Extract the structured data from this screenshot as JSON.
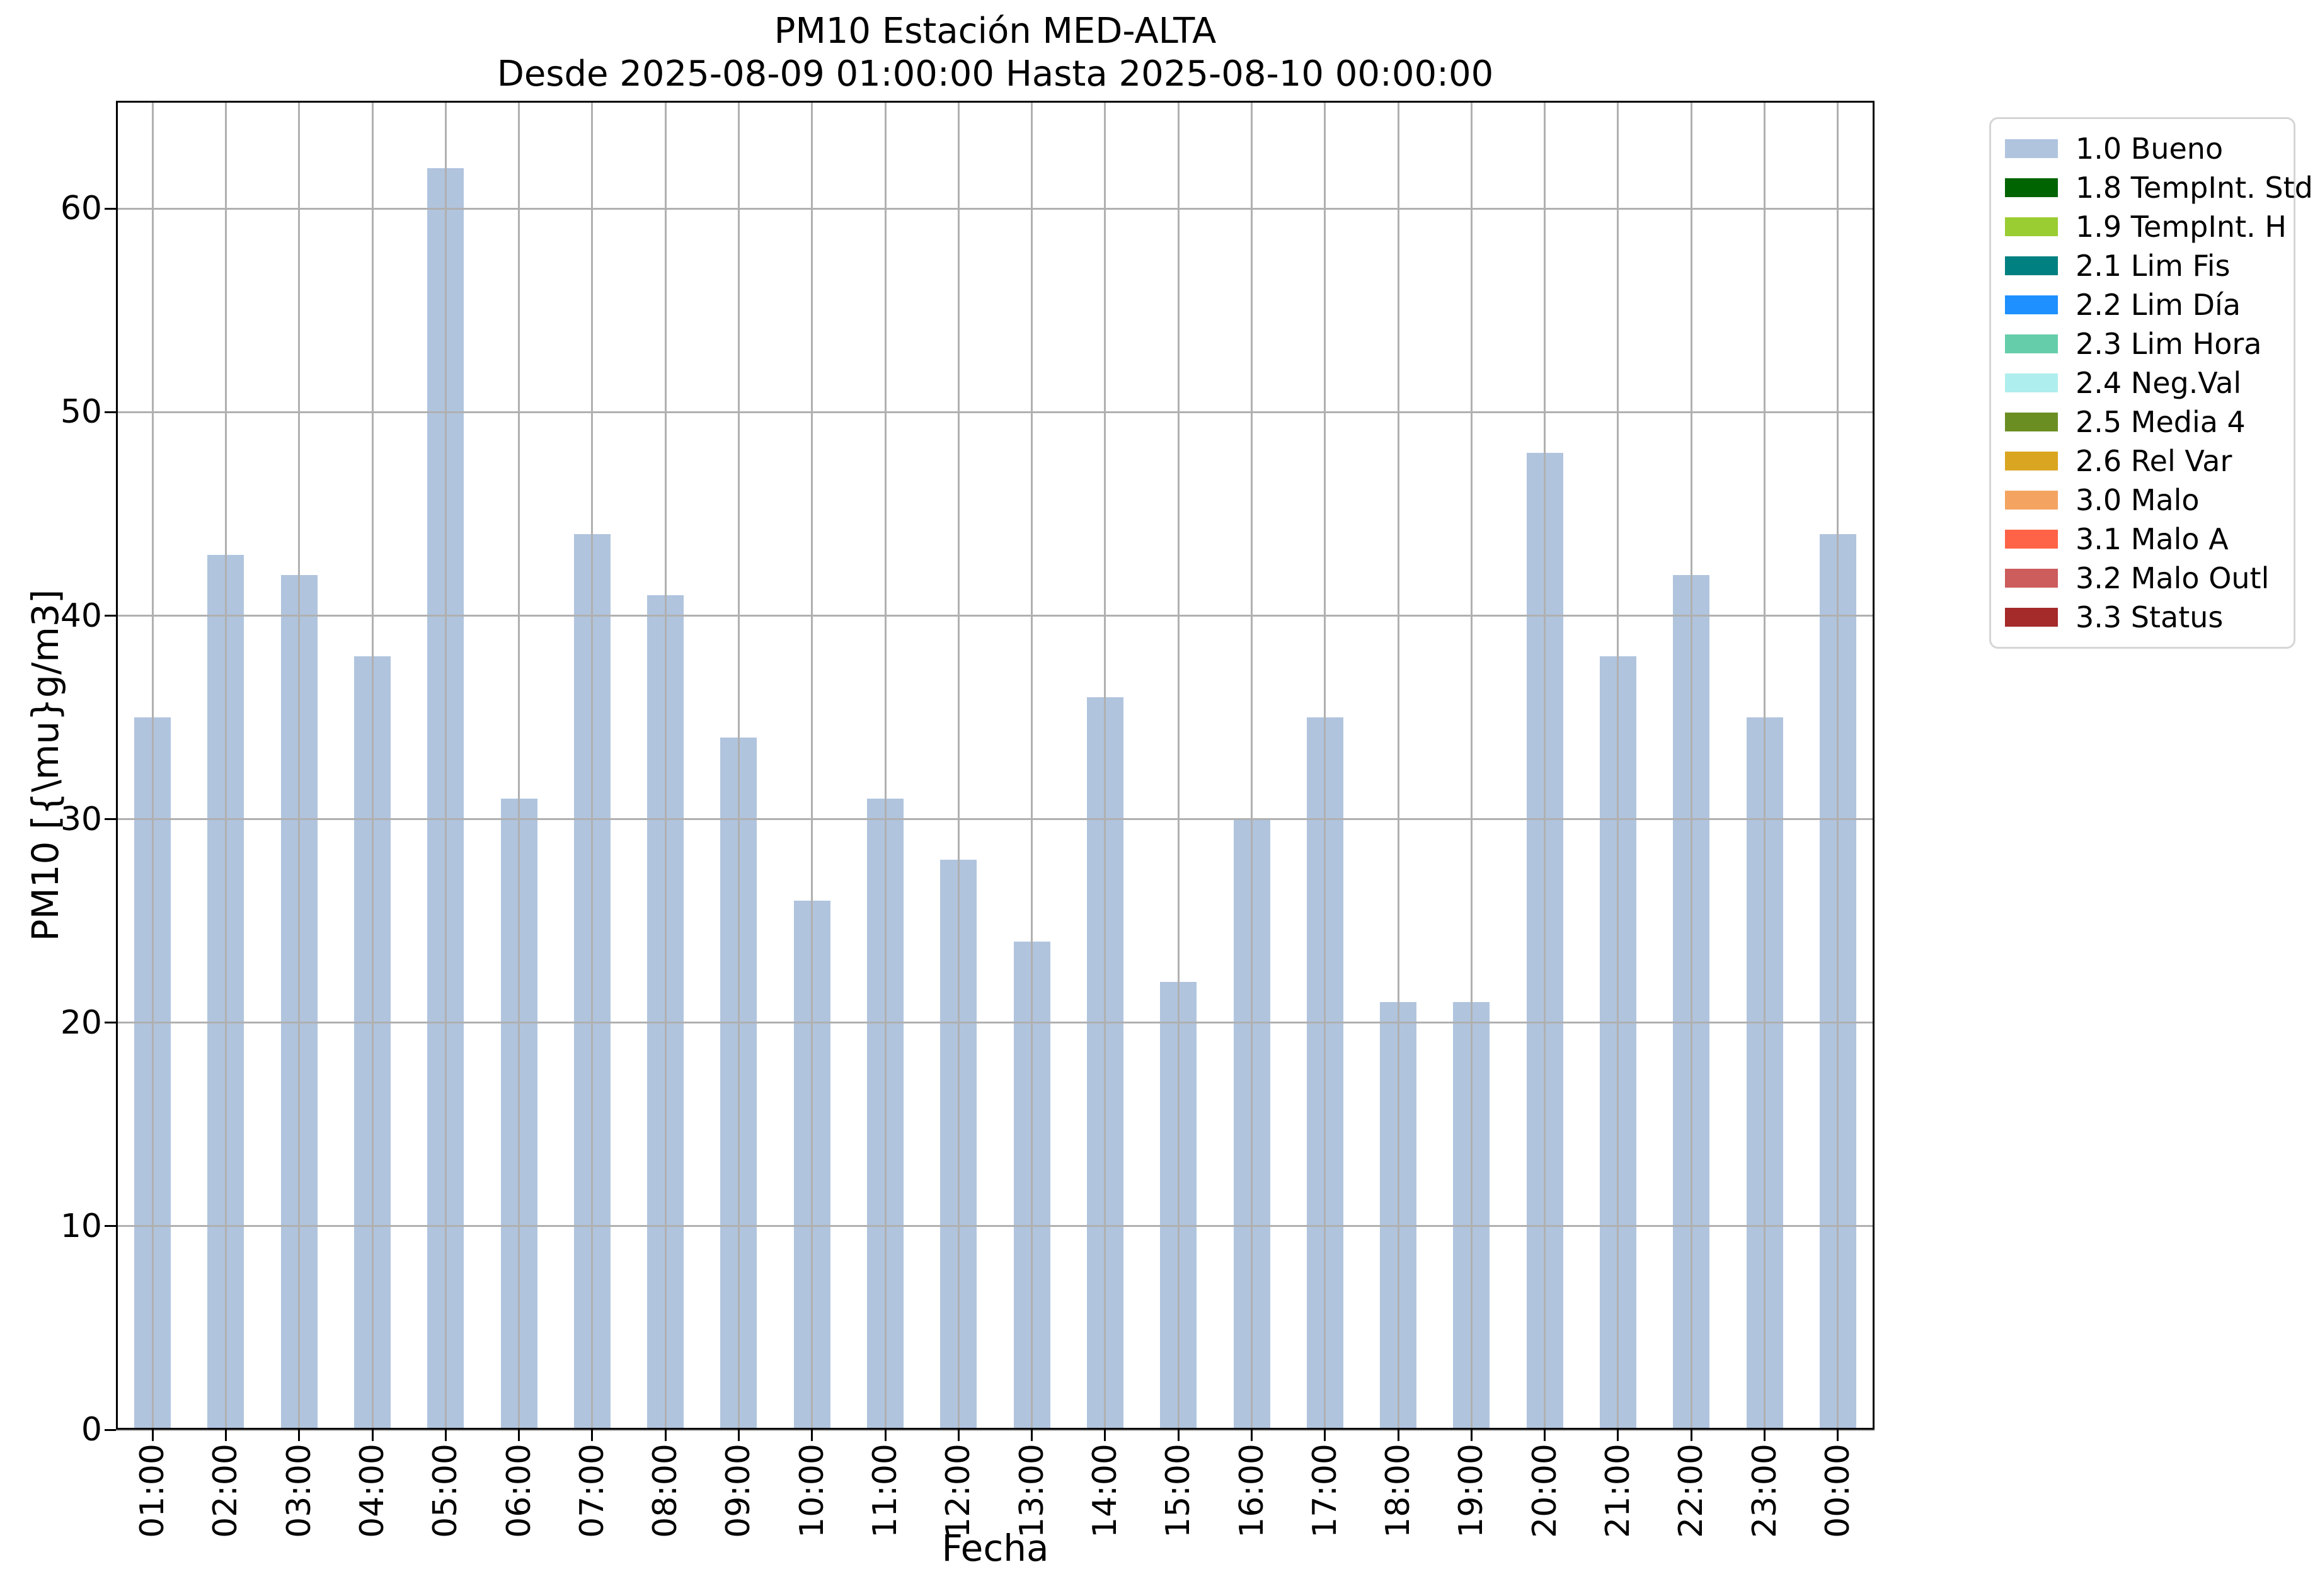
{
  "chart_data": {
    "type": "bar",
    "title": "PM10 Estación MED-ALTA",
    "subtitle": "Desde 2025-08-09 01:00:00 Hasta 2025-08-10 00:00:00",
    "xlabel": "Fecha",
    "ylabel": "PM10 [{\\mu}g/m3]",
    "categories": [
      "01:00",
      "02:00",
      "03:00",
      "04:00",
      "05:00",
      "06:00",
      "07:00",
      "08:00",
      "09:00",
      "10:00",
      "11:00",
      "12:00",
      "13:00",
      "14:00",
      "15:00",
      "16:00",
      "17:00",
      "18:00",
      "19:00",
      "20:00",
      "21:00",
      "22:00",
      "23:00",
      "00:00"
    ],
    "values": [
      35,
      43,
      42,
      38,
      62,
      31,
      44,
      41,
      34,
      26,
      31,
      28,
      24,
      36,
      22,
      30,
      35,
      21,
      21,
      48,
      38,
      42,
      35,
      44
    ],
    "ylim": [
      0,
      65.3
    ],
    "yticks": [
      0,
      10,
      20,
      30,
      40,
      50,
      60
    ],
    "grid": true,
    "grid_color": "#B0B0B0",
    "bar_color": "#B0C4DE",
    "axis_color": "#000000",
    "legend_position": "outside-right",
    "legend": [
      {
        "label": "1.0 Bueno",
        "color": "#B0C4DE"
      },
      {
        "label": "1.8 TempInt. Std",
        "color": "#006400"
      },
      {
        "label": "1.9 TempInt. H",
        "color": "#9ACD32"
      },
      {
        "label": "2.1 Lim Fis",
        "color": "#008080"
      },
      {
        "label": "2.2 Lim Día",
        "color": "#1E90FF"
      },
      {
        "label": "2.3 Lim Hora",
        "color": "#66CDAA"
      },
      {
        "label": "2.4 Neg.Val",
        "color": "#AFEEEE"
      },
      {
        "label": "2.5 Media 4",
        "color": "#6B8E23"
      },
      {
        "label": "2.6 Rel Var",
        "color": "#DAA520"
      },
      {
        "label": "3.0 Malo",
        "color": "#F4A460"
      },
      {
        "label": "3.1 Malo A",
        "color": "#FF6347"
      },
      {
        "label": "3.2 Malo Outl",
        "color": "#CD5C5C"
      },
      {
        "label": "3.3 Status",
        "color": "#A52A2A"
      }
    ]
  }
}
